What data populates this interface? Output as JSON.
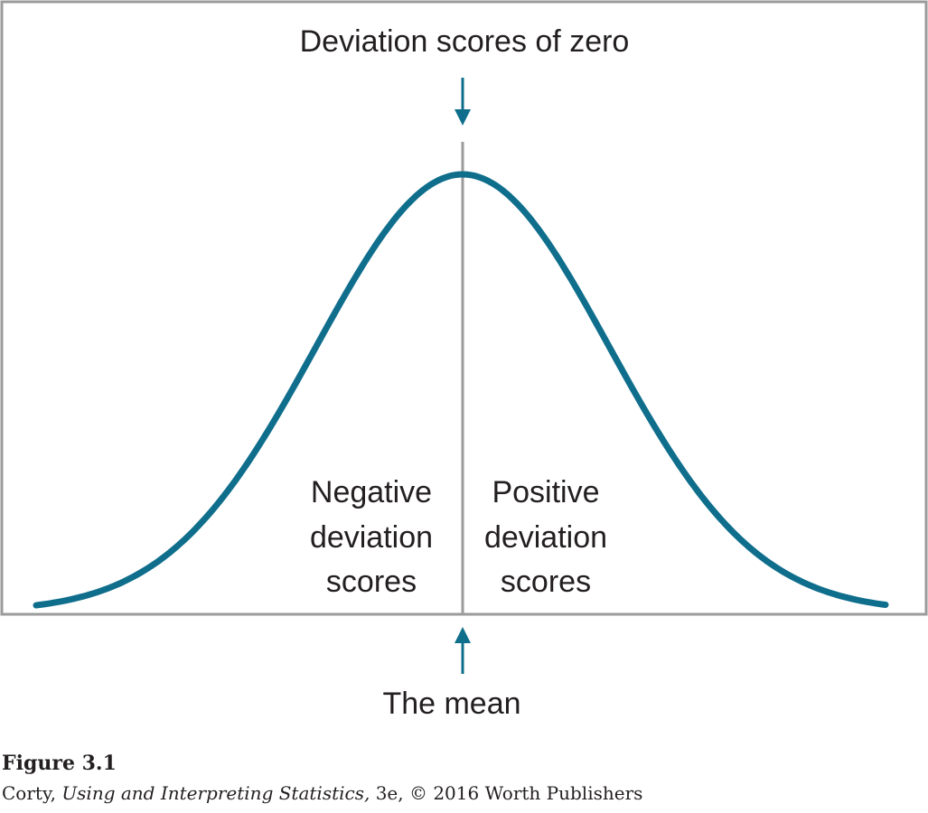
{
  "diagram": {
    "top_label": "Deviation scores of zero",
    "bottom_label": "The mean",
    "left_label_lines": [
      "Negative",
      "deviation",
      "scores"
    ],
    "right_label_lines": [
      "Positive",
      "deviation",
      "scores"
    ],
    "colors": {
      "curve": "#0f6e8c",
      "arrow": "#0f6e8c",
      "frame": "#9b9b9b",
      "mean_line": "#9b9b9b",
      "text": "#231f20"
    },
    "distribution": "normal"
  },
  "caption": {
    "figure_label": "Figure 3.1",
    "credit_prefix": "Corty, ",
    "credit_book": "Using and Interpreting Statistics,",
    "credit_suffix": " 3e, © 2016 Worth Publishers"
  }
}
